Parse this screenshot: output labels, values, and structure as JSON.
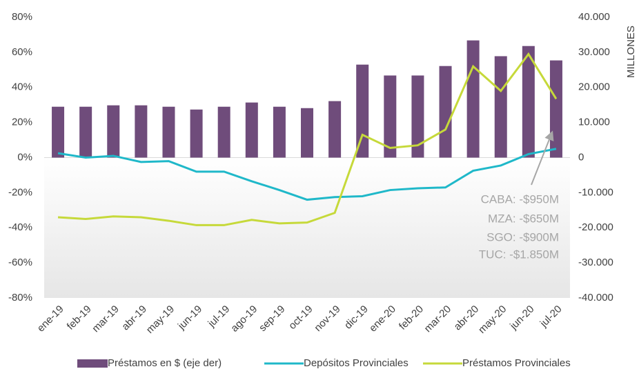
{
  "chart_data": {
    "type": "bar",
    "y2_axis_label": "MILLONES",
    "categories": [
      "ene-19",
      "feb-19",
      "mar-19",
      "abr-19",
      "may-19",
      "jun-19",
      "jul-19",
      "ago-19",
      "sep-19",
      "oct-19",
      "nov-19",
      "dic-19",
      "ene-20",
      "feb-20",
      "mar-20",
      "abr-20",
      "may-20",
      "jun-20",
      "jul-20"
    ],
    "series": [
      {
        "name": "Préstamos en $ (eje der)",
        "type": "bar",
        "axis": "y2",
        "color": "#6f4c7b",
        "values": [
          14500,
          14500,
          14900,
          14900,
          14500,
          13700,
          14500,
          15700,
          14500,
          14100,
          16100,
          26500,
          23400,
          23400,
          26100,
          33400,
          28900,
          31800,
          27700
        ]
      },
      {
        "name": "Depósitos Provinciales",
        "type": "line",
        "color": "#1fb8c9",
        "values": [
          2.5,
          0,
          1,
          -2.5,
          -2,
          -8,
          -8,
          -13.5,
          -18.5,
          -24,
          -22.5,
          -22,
          -18.5,
          -17.5,
          -17,
          -7.5,
          -4.5,
          2,
          5
        ]
      },
      {
        "name": "Préstamos Provinciales",
        "type": "line",
        "color": "#c6d93a",
        "values": [
          -34,
          -35,
          -33.5,
          -34,
          -36,
          -38.5,
          -38.5,
          -35.5,
          -37.5,
          -37,
          -31.5,
          13,
          5.5,
          7,
          16,
          52,
          38,
          59,
          33.5
        ]
      }
    ],
    "ylim": [
      -80,
      80
    ],
    "yticks": [
      {
        "value": 80,
        "label": "80%"
      },
      {
        "value": 60,
        "label": "60%"
      },
      {
        "value": 40,
        "label": "40%"
      },
      {
        "value": 20,
        "label": "20%"
      },
      {
        "value": 0,
        "label": "0%"
      },
      {
        "value": -20,
        "label": "-20%"
      },
      {
        "value": -40,
        "label": "-40%"
      },
      {
        "value": -60,
        "label": "-60%"
      },
      {
        "value": -80,
        "label": "-80%"
      }
    ],
    "y2lim": [
      -40000,
      40000
    ],
    "y2ticks": [
      {
        "value": 40000,
        "label": "40.000"
      },
      {
        "value": 30000,
        "label": "30.000"
      },
      {
        "value": 20000,
        "label": "20.000"
      },
      {
        "value": 10000,
        "label": "10.000"
      },
      0,
      {
        "value": -10000,
        "label": "-10.000"
      },
      {
        "value": -20000,
        "label": "-20.000"
      },
      {
        "value": -30000,
        "label": "-30.000"
      },
      {
        "value": -40000,
        "label": "-40.000"
      }
    ],
    "annotations": [
      "CABA: -$950M",
      "MZA: -$650M",
      "SGO: -$900M",
      "TUC: -$1.850M"
    ],
    "legend_position": "bottom"
  }
}
